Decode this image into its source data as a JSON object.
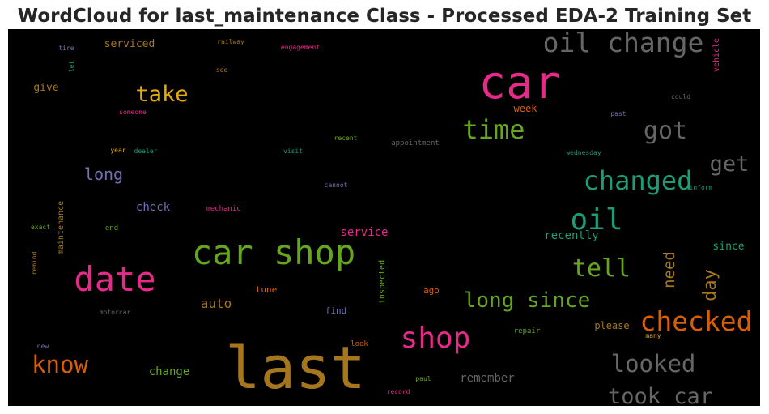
{
  "chart_data": {
    "type": "wordcloud",
    "title": "WordCloud for last_maintenance Class - Processed EDA-2 Training Set",
    "background": "#000000",
    "words": [
      {
        "text": "last",
        "weight": 1.0,
        "color": "#a6761d",
        "rotated": false
      },
      {
        "text": "car",
        "weight": 0.78,
        "color": "#e7298a",
        "rotated": false
      },
      {
        "text": "car shop",
        "weight": 0.58,
        "color": "#66a61e",
        "rotated": false
      },
      {
        "text": "date",
        "weight": 0.58,
        "color": "#e7298a",
        "rotated": false
      },
      {
        "text": "shop",
        "weight": 0.5,
        "color": "#e7298a",
        "rotated": false
      },
      {
        "text": "oil",
        "weight": 0.5,
        "color": "#1b9e77",
        "rotated": false
      },
      {
        "text": "oil change",
        "weight": 0.46,
        "color": "#666666",
        "rotated": false
      },
      {
        "text": "checked",
        "weight": 0.46,
        "color": "#d95f02",
        "rotated": false
      },
      {
        "text": "changed",
        "weight": 0.44,
        "color": "#1b9e77",
        "rotated": false
      },
      {
        "text": "time",
        "weight": 0.44,
        "color": "#66a61e",
        "rotated": false
      },
      {
        "text": "tell",
        "weight": 0.42,
        "color": "#66a61e",
        "rotated": false
      },
      {
        "text": "got",
        "weight": 0.42,
        "color": "#666666",
        "rotated": false
      },
      {
        "text": "took car",
        "weight": 0.38,
        "color": "#666666",
        "rotated": false
      },
      {
        "text": "get",
        "weight": 0.38,
        "color": "#666666",
        "rotated": false
      },
      {
        "text": "know",
        "weight": 0.4,
        "color": "#d95f02",
        "rotated": false
      },
      {
        "text": "looked",
        "weight": 0.4,
        "color": "#666666",
        "rotated": false
      },
      {
        "text": "take",
        "weight": 0.38,
        "color": "#e6ab02",
        "rotated": false
      },
      {
        "text": "long since",
        "weight": 0.36,
        "color": "#66a61e",
        "rotated": false
      },
      {
        "text": "day",
        "weight": 0.3,
        "color": "#a6761d",
        "rotated": true
      },
      {
        "text": "need",
        "weight": 0.26,
        "color": "#a6761d",
        "rotated": true
      },
      {
        "text": "long",
        "weight": 0.28,
        "color": "#7570b3",
        "rotated": false
      },
      {
        "text": "auto",
        "weight": 0.22,
        "color": "#a6761d",
        "rotated": false
      },
      {
        "text": "remember",
        "weight": 0.2,
        "color": "#666666",
        "rotated": false
      },
      {
        "text": "service",
        "weight": 0.2,
        "color": "#e7298a",
        "rotated": false
      },
      {
        "text": "recently",
        "weight": 0.2,
        "color": "#1b9e77",
        "rotated": false
      },
      {
        "text": "change",
        "weight": 0.2,
        "color": "#66a61e",
        "rotated": false
      },
      {
        "text": "check",
        "weight": 0.2,
        "color": "#7570b3",
        "rotated": false
      },
      {
        "text": "since",
        "weight": 0.18,
        "color": "#1b9e77",
        "rotated": false
      },
      {
        "text": "serviced",
        "weight": 0.18,
        "color": "#a6761d",
        "rotated": false
      },
      {
        "text": "give",
        "weight": 0.18,
        "color": "#a6761d",
        "rotated": false
      },
      {
        "text": "week",
        "weight": 0.17,
        "color": "#d95f02",
        "rotated": false
      },
      {
        "text": "please",
        "weight": 0.16,
        "color": "#a6761d",
        "rotated": false
      },
      {
        "text": "find",
        "weight": 0.15,
        "color": "#7570b3",
        "rotated": false
      },
      {
        "text": "tune",
        "weight": 0.15,
        "color": "#d95f02",
        "rotated": false
      },
      {
        "text": "ago",
        "weight": 0.15,
        "color": "#d95f02",
        "rotated": false
      },
      {
        "text": "maintenance",
        "weight": 0.14,
        "color": "#a6761d",
        "rotated": true
      },
      {
        "text": "inspected",
        "weight": 0.14,
        "color": "#66a61e",
        "rotated": true
      },
      {
        "text": "vehicle",
        "weight": 0.14,
        "color": "#e7298a",
        "rotated": true
      },
      {
        "text": "appointment",
        "weight": 0.13,
        "color": "#666666",
        "rotated": false
      },
      {
        "text": "mechanic",
        "weight": 0.12,
        "color": "#e7298a",
        "rotated": false
      },
      {
        "text": "repair",
        "weight": 0.12,
        "color": "#66a61e",
        "rotated": false
      },
      {
        "text": "look",
        "weight": 0.12,
        "color": "#d95f02",
        "rotated": false
      },
      {
        "text": "end",
        "weight": 0.12,
        "color": "#66a61e",
        "rotated": false
      },
      {
        "text": "could",
        "weight": 0.1,
        "color": "#666666",
        "rotated": false
      },
      {
        "text": "past",
        "weight": 0.1,
        "color": "#7570b3",
        "rotated": false
      },
      {
        "text": "inform",
        "weight": 0.1,
        "color": "#1b9e77",
        "rotated": false
      },
      {
        "text": "wednesday",
        "weight": 0.1,
        "color": "#1b9e77",
        "rotated": false
      },
      {
        "text": "many",
        "weight": 0.1,
        "color": "#e6ab02",
        "rotated": false
      },
      {
        "text": "paul",
        "weight": 0.1,
        "color": "#66a61e",
        "rotated": false
      },
      {
        "text": "record",
        "weight": 0.1,
        "color": "#e7298a",
        "rotated": false
      },
      {
        "text": "engagement",
        "weight": 0.1,
        "color": "#e7298a",
        "rotated": false
      },
      {
        "text": "railway",
        "weight": 0.1,
        "color": "#a6761d",
        "rotated": false
      },
      {
        "text": "see",
        "weight": 0.1,
        "color": "#a6761d",
        "rotated": false
      },
      {
        "text": "tire",
        "weight": 0.1,
        "color": "#7570b3",
        "rotated": false
      },
      {
        "text": "let",
        "weight": 0.1,
        "color": "#1b9e77",
        "rotated": true
      },
      {
        "text": "someone",
        "weight": 0.1,
        "color": "#e7298a",
        "rotated": false
      },
      {
        "text": "year",
        "weight": 0.1,
        "color": "#e6ab02",
        "rotated": false
      },
      {
        "text": "dealer",
        "weight": 0.1,
        "color": "#1b9e77",
        "rotated": false
      },
      {
        "text": "visit",
        "weight": 0.1,
        "color": "#1b9e77",
        "rotated": false
      },
      {
        "text": "recent",
        "weight": 0.1,
        "color": "#66a61e",
        "rotated": false
      },
      {
        "text": "cannot",
        "weight": 0.1,
        "color": "#7570b3",
        "rotated": false
      },
      {
        "text": "exact",
        "weight": 0.1,
        "color": "#66a61e",
        "rotated": false
      },
      {
        "text": "remind",
        "weight": 0.09,
        "color": "#a6761d",
        "rotated": true
      },
      {
        "text": "motorcar",
        "weight": 0.1,
        "color": "#666666",
        "rotated": false
      },
      {
        "text": "new",
        "weight": 0.1,
        "color": "#7570b3",
        "rotated": false
      }
    ]
  }
}
